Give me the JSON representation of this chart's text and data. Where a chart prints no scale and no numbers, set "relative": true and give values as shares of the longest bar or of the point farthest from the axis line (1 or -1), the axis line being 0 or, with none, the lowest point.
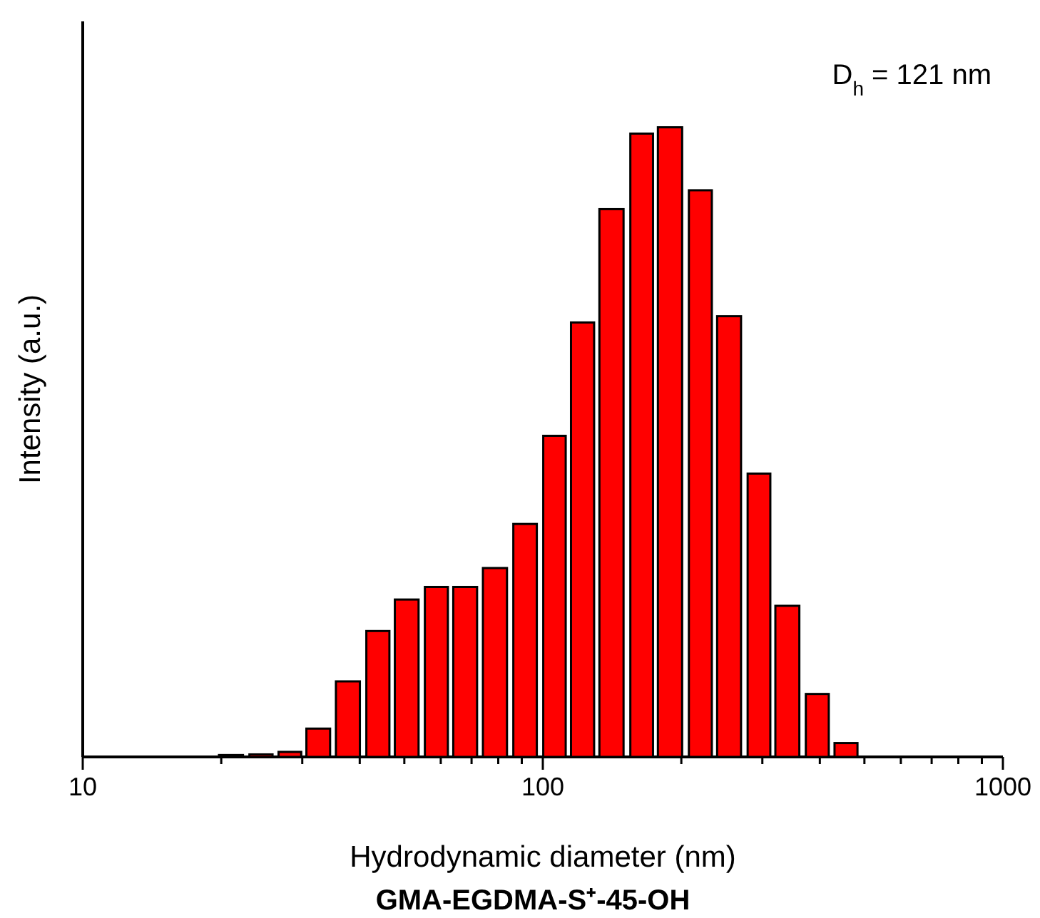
{
  "chart_data": {
    "type": "bar",
    "relative": true,
    "log": "x",
    "color": "#ff0000",
    "x": [
      21.0,
      24.4,
      28.2,
      32.5,
      37.7,
      43.8,
      50.6,
      58.7,
      67.8,
      78.7,
      91.5,
      106,
      122,
      141,
      164,
      189,
      220,
      254,
      295,
      340,
      395,
      456
    ],
    "values": [
      0.003,
      0.004,
      0.008,
      0.045,
      0.12,
      0.2,
      0.25,
      0.27,
      0.27,
      0.3,
      0.37,
      0.51,
      0.69,
      0.87,
      0.99,
      1,
      0.9,
      0.7,
      0.45,
      0.24,
      0.1,
      0.022
    ],
    "xlim": [
      10,
      1000
    ],
    "xticks": [
      10,
      {
        "value": 20,
        "label": null
      },
      {
        "value": 30,
        "label": null
      },
      {
        "value": 40,
        "label": null
      },
      {
        "value": 50,
        "label": null
      },
      {
        "value": 60,
        "label": null
      },
      {
        "value": 70,
        "label": null
      },
      {
        "value": 80,
        "label": null
      },
      {
        "value": 90,
        "label": null
      },
      100,
      {
        "value": 200,
        "label": null
      },
      {
        "value": 300,
        "label": null
      },
      {
        "value": 400,
        "label": null
      },
      {
        "value": 500,
        "label": null
      },
      {
        "value": 600,
        "label": null
      },
      {
        "value": 700,
        "label": null
      },
      {
        "value": 800,
        "label": null
      },
      {
        "value": 900,
        "label": null
      },
      1000
    ],
    "xlabel": "Hydrodynamic diameter (nm)",
    "ylabel": "Intensity (a.u.)",
    "annotations": [
      "D$_{h}$ = 121 nm",
      "GMA-EGDMA-S⁺-45-OH"
    ]
  }
}
